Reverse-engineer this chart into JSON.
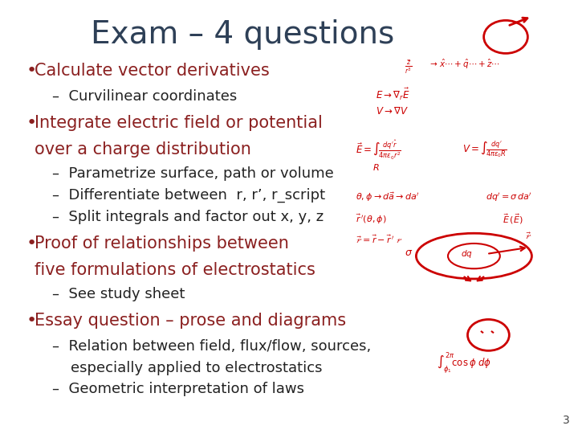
{
  "title": "Exam – 4 questions",
  "title_color": "#2E4057",
  "title_fontsize": 28,
  "background_color": "#ffffff",
  "bullet_color": "#8B2020",
  "sub_color": "#222222",
  "accent_red": "#CC0000",
  "slide_number": "3",
  "bullets": [
    {
      "text": "Calculate vector derivatives",
      "color": "#8B2020",
      "fontsize": 15,
      "sub_items": [
        {
          "text": "–  Curvilinear coordinates",
          "color": "#222222",
          "fontsize": 13
        }
      ]
    },
    {
      "text": "Integrate electric field or potential\nover a charge distribution",
      "color": "#8B2020",
      "fontsize": 15,
      "sub_items": [
        {
          "text": "–  Parametrize surface, path or volume",
          "color": "#222222",
          "fontsize": 13
        },
        {
          "text": "–  Differentiate between  r, r’, r_script",
          "color": "#222222",
          "fontsize": 13
        },
        {
          "text": "–  Split integrals and factor out x, y, z",
          "color": "#222222",
          "fontsize": 13
        }
      ]
    },
    {
      "text": "Proof of relationships between\nfive formulations of electrostatics",
      "color": "#8B2020",
      "fontsize": 15,
      "sub_items": [
        {
          "text": "–  See study sheet",
          "color": "#222222",
          "fontsize": 13
        }
      ]
    },
    {
      "text": "Essay question – prose and diagrams",
      "color": "#8B2020",
      "fontsize": 15,
      "sub_items": [
        {
          "text": "–  Relation between field, flux/flow, sources,\n    especially applied to electrostatics",
          "color": "#222222",
          "fontsize": 13
        },
        {
          "text": "–  Geometric interpretation of laws",
          "color": "#222222",
          "fontsize": 13
        }
      ]
    }
  ]
}
